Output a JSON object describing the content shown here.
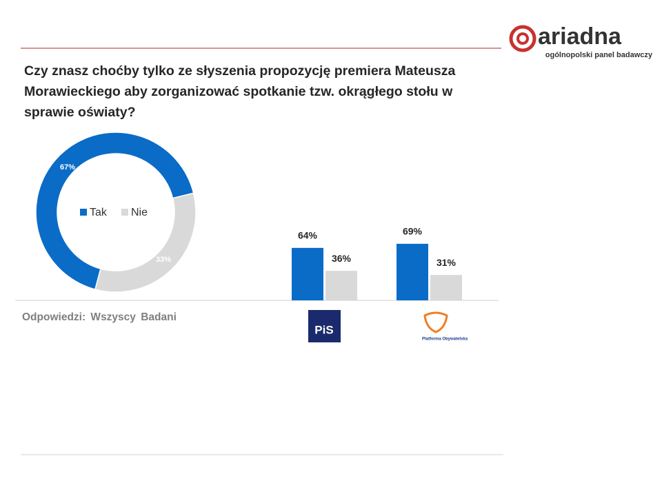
{
  "header": {
    "brand": "ariadna",
    "tagline": "ogólnopolski panel badawczy"
  },
  "question": "Czy znasz choćby tylko ze słyszenia propozycję premiera Mateusza Morawieckiego aby zorganizować spotkanie tzw. okrągłego stołu w sprawie oświaty?",
  "footnote": "Odpowiedzi: Wszyscy Badani",
  "chart_data": [
    {
      "type": "donut",
      "categories": [
        "Tak",
        "Nie"
      ],
      "values": [
        67,
        33
      ],
      "value_labels": [
        "67%",
        "33%"
      ],
      "colors": [
        "#0a6cc7",
        "#d9d9d9"
      ],
      "legend": "center"
    },
    {
      "type": "bar",
      "categories": [
        "PiS",
        "Platforma Obywatelska"
      ],
      "series": [
        {
          "color": "#0a6cc7",
          "values": [
            64,
            69
          ],
          "value_labels": [
            "64%",
            "69%"
          ]
        },
        {
          "color": "#d9d9d9",
          "values": [
            36,
            31
          ],
          "value_labels": [
            "36%",
            "31%"
          ]
        }
      ]
    }
  ]
}
